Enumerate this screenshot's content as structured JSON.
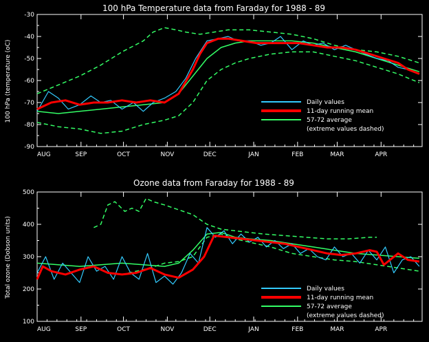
{
  "colors": {
    "background": "#000000",
    "axes": "#ffffff",
    "daily": "#33ccff",
    "running_mean": "#ff0000",
    "average": "#33ff66"
  },
  "months": [
    "AUG",
    "SEP",
    "OCT",
    "NOV",
    "DEC",
    "JAN",
    "FEB",
    "MAR",
    "APR"
  ],
  "legend": {
    "daily": "Daily values",
    "running_mean": "11-day running mean",
    "average": "57-72 average",
    "extreme_note": "(extreme values dashed)"
  },
  "chart_data": [
    {
      "type": "line",
      "title": "100 hPa Temperature data from Faraday for 1988 - 89",
      "ylabel": "100 hPa (temperature (oC)",
      "ylim": [
        -90,
        -30
      ],
      "yticks": [
        -30,
        -40,
        -50,
        -60,
        -70,
        -80,
        -90
      ],
      "x_unit": "day index from 1 Aug 1988",
      "xlim": [
        0,
        272
      ],
      "series": [
        {
          "key": "daily",
          "name": "Daily values",
          "style": "daily",
          "x": [
            0,
            8,
            15,
            22,
            30,
            38,
            45,
            52,
            60,
            68,
            75,
            82,
            90,
            98,
            105,
            112,
            120,
            128,
            135,
            142,
            150,
            158,
            165,
            172,
            180,
            188,
            195,
            202,
            210,
            218,
            225,
            232,
            240,
            248,
            255,
            262,
            270
          ],
          "y": [
            -74,
            -65,
            -68,
            -73,
            -71,
            -67,
            -70,
            -69,
            -73,
            -70,
            -74,
            -70,
            -68,
            -65,
            -59,
            -50,
            -42,
            -41,
            -40,
            -42,
            -42,
            -44,
            -43,
            -40,
            -46,
            -42,
            -44,
            -43,
            -46,
            -44,
            -46,
            -48,
            -50,
            -51,
            -54,
            -55,
            -57
          ]
        },
        {
          "key": "running_mean",
          "name": "11-day running mean",
          "style": "mean",
          "x": [
            0,
            10,
            20,
            30,
            40,
            50,
            60,
            70,
            80,
            90,
            100,
            110,
            115,
            120,
            128,
            135,
            145,
            155,
            165,
            175,
            185,
            195,
            205,
            215,
            225,
            235,
            245,
            255,
            262,
            270
          ],
          "y": [
            -73,
            -70,
            -69,
            -71,
            -70,
            -70,
            -69,
            -70,
            -69,
            -70,
            -66,
            -55,
            -48,
            -43,
            -41,
            -41,
            -42,
            -43,
            -43,
            -43,
            -43,
            -44,
            -45,
            -45,
            -46,
            -48,
            -50,
            -52,
            -55,
            -57
          ]
        },
        {
          "key": "average",
          "name": "57-72 average",
          "style": "avg",
          "x": [
            0,
            15,
            30,
            45,
            60,
            75,
            90,
            100,
            110,
            120,
            130,
            140,
            150,
            165,
            180,
            195,
            210,
            225,
            240,
            255,
            270
          ],
          "y": [
            -74,
            -75,
            -74,
            -73,
            -72,
            -71,
            -70,
            -66,
            -58,
            -50,
            -45,
            -43,
            -42,
            -42,
            -42,
            -43,
            -45,
            -47,
            -50,
            -53,
            -56
          ]
        },
        {
          "key": "upper",
          "name": "",
          "style": "avg-dash",
          "x": [
            0,
            15,
            30,
            45,
            60,
            75,
            82,
            90,
            98,
            105,
            115,
            125,
            135,
            150,
            165,
            180,
            195,
            210,
            225,
            240,
            255,
            270
          ],
          "y": [
            -66,
            -62,
            -58,
            -53,
            -47,
            -42,
            -38,
            -36,
            -37,
            -38,
            -39,
            -38,
            -37,
            -37,
            -38,
            -39,
            -41,
            -44,
            -46,
            -47,
            -49,
            -52
          ]
        },
        {
          "key": "lower",
          "name": "",
          "style": "avg-dash",
          "x": [
            0,
            15,
            30,
            45,
            60,
            75,
            90,
            100,
            110,
            120,
            130,
            140,
            150,
            165,
            180,
            195,
            210,
            225,
            240,
            255,
            270
          ],
          "y": [
            -79,
            -81,
            -82,
            -84,
            -83,
            -80,
            -78,
            -76,
            -70,
            -60,
            -55,
            -52,
            -50,
            -48,
            -47,
            -47,
            -49,
            -51,
            -54,
            -57,
            -61
          ]
        }
      ]
    },
    {
      "type": "line",
      "title": "Ozone data from Faraday for 1988 - 89",
      "ylabel": "Total ozone (Dobson units)",
      "ylim": [
        100,
        500
      ],
      "yticks": [
        100,
        200,
        300,
        400,
        500
      ],
      "x_unit": "day index from 1 Aug 1988",
      "xlim": [
        0,
        272
      ],
      "series": [
        {
          "key": "daily",
          "name": "Daily values",
          "style": "daily",
          "x": [
            0,
            6,
            12,
            18,
            24,
            30,
            36,
            42,
            48,
            54,
            60,
            66,
            72,
            78,
            84,
            90,
            96,
            102,
            108,
            114,
            120,
            126,
            132,
            138,
            144,
            150,
            156,
            162,
            168,
            174,
            180,
            186,
            192,
            198,
            204,
            210,
            216,
            222,
            228,
            234,
            240,
            246,
            252,
            258,
            264,
            270
          ],
          "y": [
            250,
            300,
            230,
            280,
            250,
            220,
            300,
            255,
            270,
            230,
            300,
            250,
            230,
            310,
            220,
            240,
            215,
            250,
            310,
            280,
            390,
            360,
            380,
            340,
            370,
            345,
            360,
            330,
            350,
            325,
            340,
            310,
            325,
            300,
            290,
            330,
            300,
            310,
            280,
            320,
            290,
            330,
            250,
            290,
            300,
            270
          ]
        },
        {
          "key": "running_mean",
          "name": "11-day running mean",
          "style": "mean",
          "x": [
            0,
            4,
            10,
            20,
            30,
            40,
            50,
            60,
            70,
            80,
            90,
            100,
            110,
            118,
            125,
            135,
            145,
            155,
            165,
            175,
            185,
            195,
            205,
            215,
            225,
            235,
            240,
            245,
            255,
            262,
            270
          ],
          "y": [
            230,
            270,
            255,
            245,
            260,
            270,
            250,
            245,
            250,
            265,
            245,
            235,
            260,
            300,
            365,
            360,
            355,
            350,
            345,
            340,
            330,
            320,
            310,
            305,
            310,
            320,
            315,
            275,
            310,
            290,
            285
          ]
        },
        {
          "key": "average",
          "name": "57-72 average",
          "style": "avg",
          "x": [
            0,
            15,
            30,
            45,
            60,
            75,
            90,
            100,
            110,
            120,
            130,
            140,
            150,
            165,
            180,
            195,
            210,
            225,
            240,
            255,
            270
          ],
          "y": [
            280,
            275,
            270,
            275,
            280,
            275,
            270,
            280,
            320,
            370,
            375,
            360,
            355,
            350,
            340,
            330,
            320,
            310,
            305,
            300,
            295
          ]
        },
        {
          "key": "upper",
          "name": "",
          "style": "avg-dash",
          "x": [
            40,
            45,
            50,
            55,
            62,
            67,
            72,
            77,
            82,
            90,
            100,
            110,
            120,
            130,
            140,
            150,
            160,
            175,
            190,
            205,
            220,
            235,
            240
          ],
          "y": [
            390,
            400,
            460,
            470,
            440,
            450,
            440,
            480,
            470,
            460,
            445,
            430,
            400,
            385,
            380,
            375,
            370,
            365,
            360,
            355,
            355,
            360,
            360
          ]
        },
        {
          "key": "lower",
          "name": "",
          "style": "avg-dash",
          "x": [
            50,
            60,
            70,
            80,
            90,
            100,
            110,
            120,
            130,
            140,
            150,
            165,
            180,
            195,
            210,
            225,
            240,
            255,
            270
          ],
          "y": [
            250,
            245,
            255,
            265,
            280,
            285,
            300,
            360,
            370,
            355,
            345,
            330,
            310,
            300,
            290,
            285,
            275,
            265,
            255
          ]
        }
      ]
    }
  ]
}
